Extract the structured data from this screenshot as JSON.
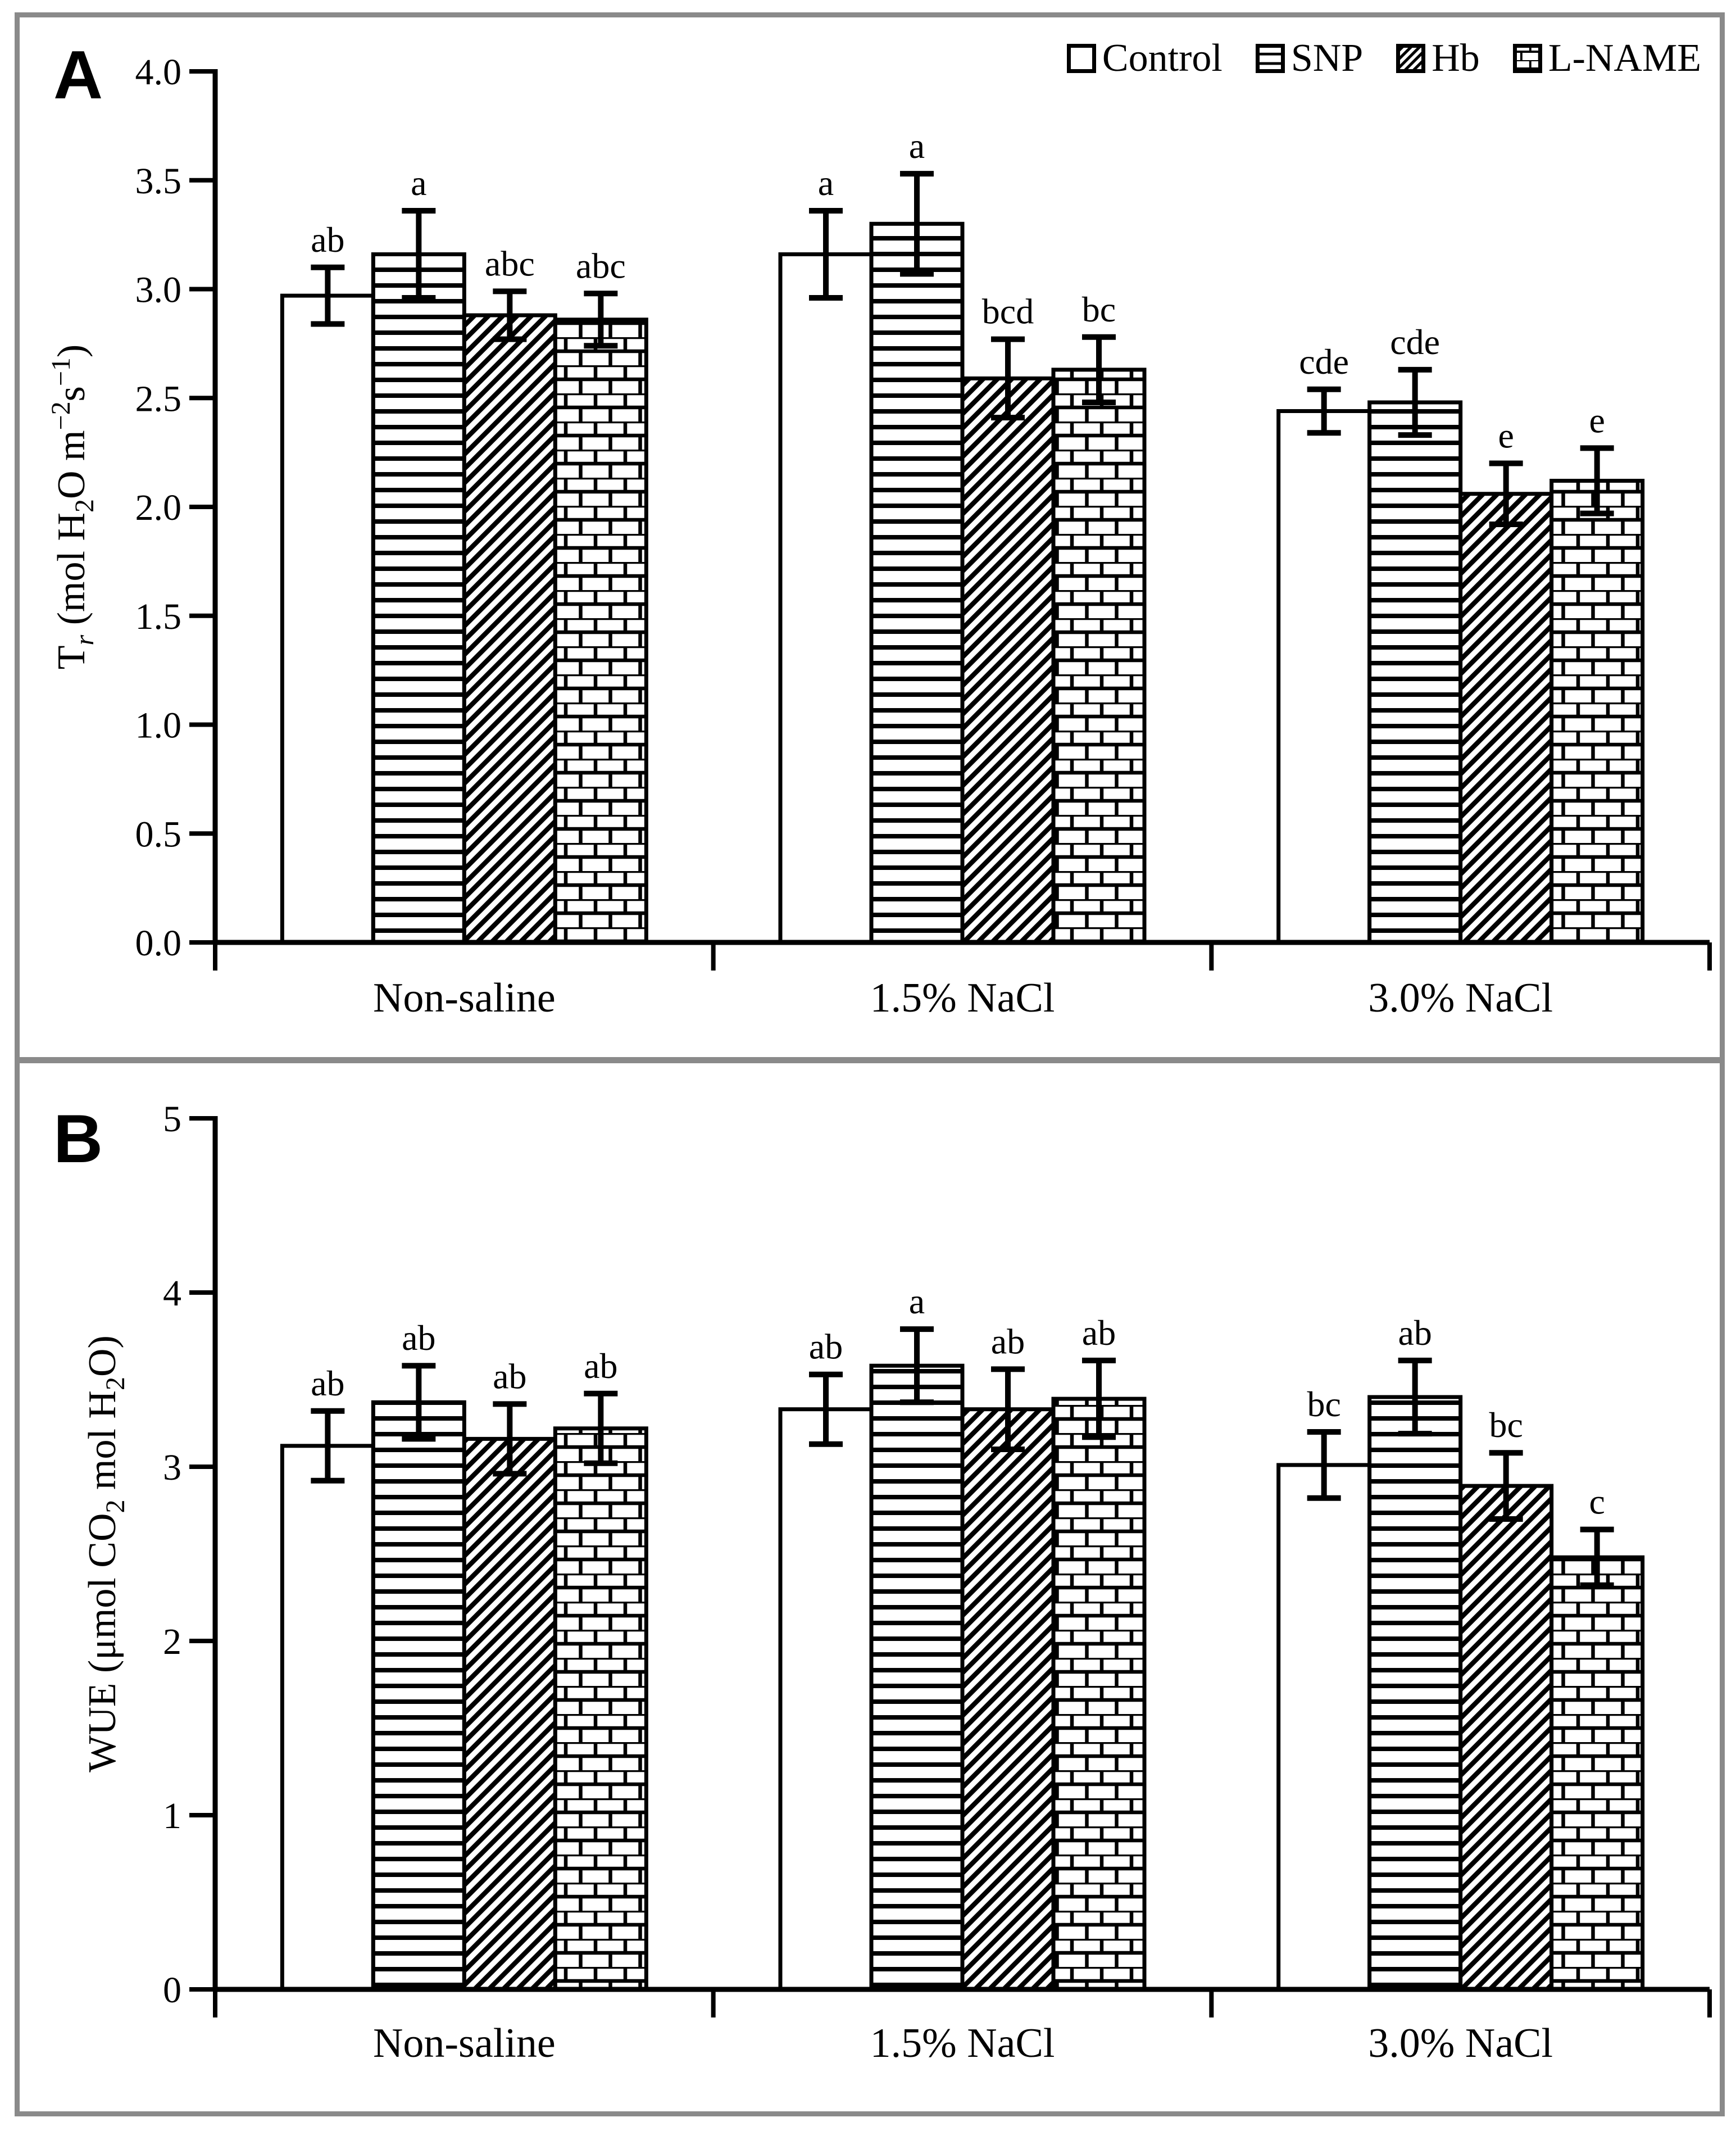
{
  "figure": {
    "background_color": "#ffffff",
    "frame_color": "#8a8a8a",
    "ink_color": "#000000",
    "legend": [
      {
        "label": "Control",
        "pattern": "plain"
      },
      {
        "label": "SNP",
        "pattern": "hlines"
      },
      {
        "label": "Hb",
        "pattern": "diag"
      },
      {
        "label": "L-NAME",
        "pattern": "brick"
      }
    ]
  },
  "chart_data": [
    {
      "type": "bar",
      "panel": "A",
      "ylabel": "Tr (mol H2O m-2 s-1)",
      "ylabel_runs": [
        {
          "t": "T"
        },
        {
          "t": "r",
          "sub": true,
          "italic": true
        },
        {
          "t": " (mol H"
        },
        {
          "t": "2",
          "sub": true
        },
        {
          "t": "O m"
        },
        {
          "t": "−2",
          "sup": true
        },
        {
          "t": "s"
        },
        {
          "t": "−1",
          "sup": true
        },
        {
          "t": ")"
        }
      ],
      "ylim": [
        0,
        4
      ],
      "yticks": [
        "0.0",
        "0.5",
        "1.0",
        "1.5",
        "2.0",
        "2.5",
        "3.0",
        "3.5",
        "4.0"
      ],
      "grid": false,
      "legend_position": "top-right",
      "categories": [
        "Non-saline",
        "1.5% NaCl",
        "3.0% NaCl"
      ],
      "series": [
        {
          "name": "Control",
          "pattern": "plain",
          "values": [
            2.97,
            3.16,
            2.44
          ],
          "errors": [
            0.13,
            0.2,
            0.1
          ],
          "sig_letters": [
            "ab",
            "a",
            "cde"
          ]
        },
        {
          "name": "SNP",
          "pattern": "hlines",
          "values": [
            3.16,
            3.3,
            2.48
          ],
          "errors": [
            0.2,
            0.23,
            0.15
          ],
          "sig_letters": [
            "a",
            "a",
            "cde"
          ]
        },
        {
          "name": "Hb",
          "pattern": "diag",
          "values": [
            2.88,
            2.59,
            2.06
          ],
          "errors": [
            0.11,
            0.18,
            0.14
          ],
          "sig_letters": [
            "abc",
            "bcd",
            "e"
          ]
        },
        {
          "name": "L-NAME",
          "pattern": "brick",
          "values": [
            2.86,
            2.63,
            2.12
          ],
          "errors": [
            0.12,
            0.15,
            0.15
          ],
          "sig_letters": [
            "abc",
            "bc",
            "e"
          ]
        }
      ]
    },
    {
      "type": "bar",
      "panel": "B",
      "ylabel": "WUE (umol CO2 mol H2O)",
      "ylabel_runs": [
        {
          "t": "WUE (μmol CO"
        },
        {
          "t": "2",
          "sub": true
        },
        {
          "t": " mol H"
        },
        {
          "t": "2",
          "sub": true
        },
        {
          "t": "O)"
        }
      ],
      "ylim": [
        0,
        5
      ],
      "yticks": [
        "0",
        "1",
        "2",
        "3",
        "4",
        "5"
      ],
      "grid": false,
      "legend_position": "none",
      "categories": [
        "Non-saline",
        "1.5% NaCl",
        "3.0% NaCl"
      ],
      "series": [
        {
          "name": "Control",
          "pattern": "plain",
          "values": [
            3.12,
            3.33,
            3.01
          ],
          "errors": [
            0.2,
            0.2,
            0.19
          ],
          "sig_letters": [
            "ab",
            "ab",
            "bc"
          ]
        },
        {
          "name": "SNP",
          "pattern": "hlines",
          "values": [
            3.37,
            3.58,
            3.4
          ],
          "errors": [
            0.21,
            0.21,
            0.21
          ],
          "sig_letters": [
            "ab",
            "a",
            "ab"
          ]
        },
        {
          "name": "Hb",
          "pattern": "diag",
          "values": [
            3.16,
            3.33,
            2.89
          ],
          "errors": [
            0.2,
            0.23,
            0.19
          ],
          "sig_letters": [
            "ab",
            "ab",
            "bc"
          ]
        },
        {
          "name": "L-NAME",
          "pattern": "brick",
          "values": [
            3.22,
            3.39,
            2.48
          ],
          "errors": [
            0.2,
            0.22,
            0.16
          ],
          "sig_letters": [
            "ab",
            "ab",
            "c"
          ]
        }
      ]
    }
  ]
}
